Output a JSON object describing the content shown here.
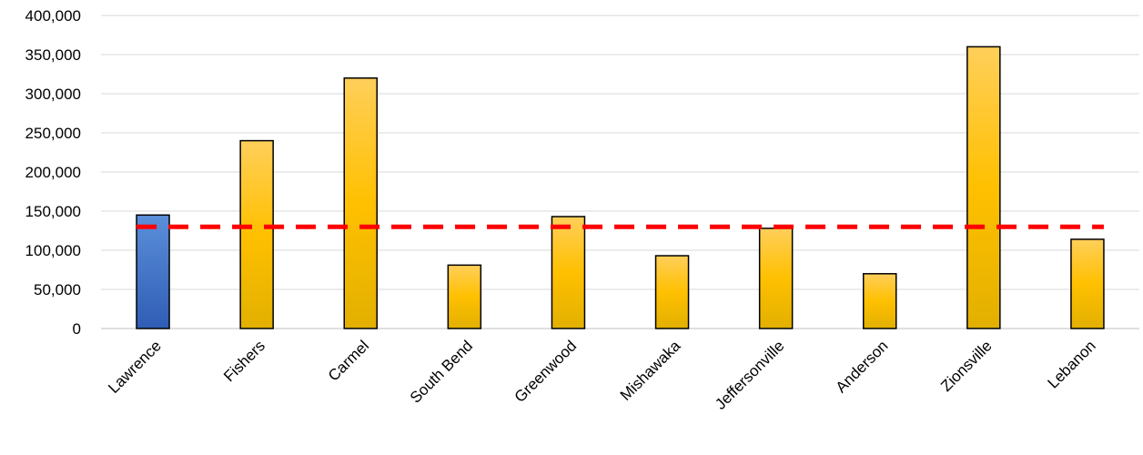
{
  "chart_data": {
    "type": "bar",
    "title": "",
    "xlabel": "",
    "ylabel": "",
    "ylim": [
      0,
      400000
    ],
    "y_ticks": [
      0,
      50000,
      100000,
      150000,
      200000,
      250000,
      300000,
      350000,
      400000
    ],
    "y_tick_labels": [
      "0",
      "50,000",
      "100,000",
      "150,000",
      "200,000",
      "250,000",
      "300,000",
      "350,000",
      "400,000"
    ],
    "grid": "horizontal",
    "legend": "none",
    "categories": [
      "Lawrence",
      "Fishers",
      "Carmel",
      "South Bend",
      "Greenwood",
      "Mishawaka",
      "Jeffersonville",
      "Anderson",
      "Zionsville",
      "Lebanon"
    ],
    "values": [
      145000,
      240000,
      320000,
      81000,
      143000,
      93000,
      128000,
      70000,
      360000,
      114000
    ],
    "highlighted_category": "Lawrence",
    "reference_line": {
      "value": 130000,
      "style": "dashed",
      "color": "#ff0000"
    },
    "colors": {
      "bar_default_top": "#ffcf5a",
      "bar_default_mid": "#ffc000",
      "bar_default_bottom": "#e2b000",
      "bar_highlight_top": "#5b8fda",
      "bar_highlight_bottom": "#2f5db5",
      "bar_outline": "#000000",
      "gridline": "#d9d9d9",
      "axis": "#bfbfbf"
    }
  }
}
